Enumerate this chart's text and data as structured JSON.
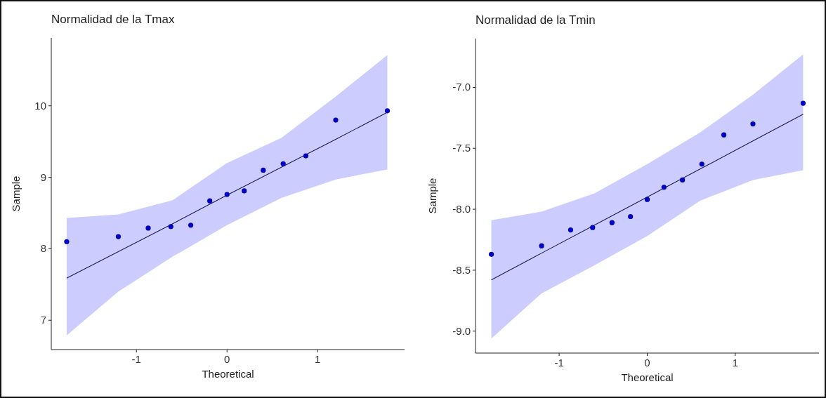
{
  "chart_data": [
    {
      "type": "scatter",
      "title": "Normalidad de la Tmax",
      "xlabel": "Theoretical",
      "ylabel": "Sample",
      "xlim": [
        -1.94,
        1.96
      ],
      "ylim": [
        6.59,
        10.95
      ],
      "xticks": [
        -1,
        0,
        1
      ],
      "yticks": [
        7,
        8,
        9,
        10
      ],
      "grid": false,
      "series": [
        {
          "type": "line",
          "color": "#1c1c50",
          "x": [
            -1.77,
            -1.2,
            -0.6,
            0,
            0.6,
            1.2,
            1.77
          ],
          "values": [
            7.59,
            7.96,
            8.35,
            8.75,
            9.14,
            9.53,
            9.91
          ],
          "lower": [
            6.79,
            7.4,
            7.89,
            8.33,
            8.71,
            8.97,
            9.11
          ],
          "upper": [
            8.43,
            8.48,
            8.68,
            9.2,
            9.55,
            10.13,
            10.71
          ]
        },
        {
          "color": "#0000c0",
          "marker": "circle",
          "x": [
            -1.77,
            -1.2,
            -0.87,
            -0.62,
            -0.4,
            -0.19,
            0,
            0.19,
            0.4,
            0.62,
            0.87,
            1.2,
            1.77
          ],
          "values": [
            8.1,
            8.17,
            8.29,
            8.31,
            8.33,
            8.67,
            8.76,
            8.81,
            9.1,
            9.19,
            9.3,
            9.8,
            9.93
          ]
        }
      ]
    },
    {
      "type": "scatter",
      "title": "Normalidad de la Tmin",
      "xlabel": "Theoretical",
      "ylabel": "Sample",
      "xlim": [
        -1.95,
        1.95
      ],
      "ylim": [
        -9.18,
        -6.6
      ],
      "xticks": [
        -1,
        0,
        1
      ],
      "yticks": [
        {
          "value": -9,
          "label": "-9.0"
        },
        {
          "value": -8.5,
          "label": "-8.5"
        },
        {
          "value": -8,
          "label": "-8.0"
        },
        {
          "value": -7.5,
          "label": "-7.5"
        },
        {
          "value": -7,
          "label": "-7.0"
        }
      ],
      "grid": false,
      "series": [
        {
          "type": "line",
          "color": "#1c1c50",
          "x": [
            -1.77,
            -1.2,
            -0.6,
            0,
            0.6,
            1.2,
            1.77
          ],
          "values": [
            -8.58,
            -8.36,
            -8.13,
            -7.9,
            -7.67,
            -7.44,
            -7.22
          ],
          "lower": [
            -9.06,
            -8.69,
            -8.46,
            -8.22,
            -7.93,
            -7.76,
            -7.68
          ],
          "upper": [
            -8.09,
            -8.02,
            -7.87,
            -7.63,
            -7.37,
            -7.06,
            -6.73
          ]
        },
        {
          "color": "#0000c0",
          "marker": "circle",
          "x": [
            -1.77,
            -1.2,
            -0.87,
            -0.62,
            -0.4,
            -0.19,
            0,
            0.19,
            0.4,
            0.62,
            0.87,
            1.2,
            1.77
          ],
          "values": [
            -8.37,
            -8.3,
            -8.17,
            -8.15,
            -8.11,
            -8.06,
            -7.92,
            -7.82,
            -7.76,
            -7.63,
            -7.39,
            -7.3,
            -7.13
          ]
        }
      ]
    }
  ]
}
